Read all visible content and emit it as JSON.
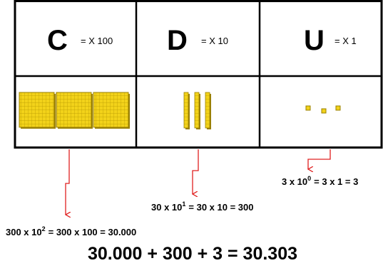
{
  "columns": [
    {
      "letter": "C",
      "multiplier": "= X 100"
    },
    {
      "letter": "D",
      "multiplier": "= X 10"
    },
    {
      "letter": "U",
      "multiplier": "= X 1"
    }
  ],
  "expressions": [
    {
      "base": "300 x 10",
      "exponent": "2",
      "rest": "= 300 x 100 = 30.000"
    },
    {
      "base": "30 x 10",
      "exponent": "1",
      "rest": "= 30 x 10 = 300"
    },
    {
      "base": "3 x 10",
      "exponent": "0",
      "rest": "= 3 x 1 = 3"
    }
  ],
  "total": "30.000 + 300 + 3 = 30.303"
}
